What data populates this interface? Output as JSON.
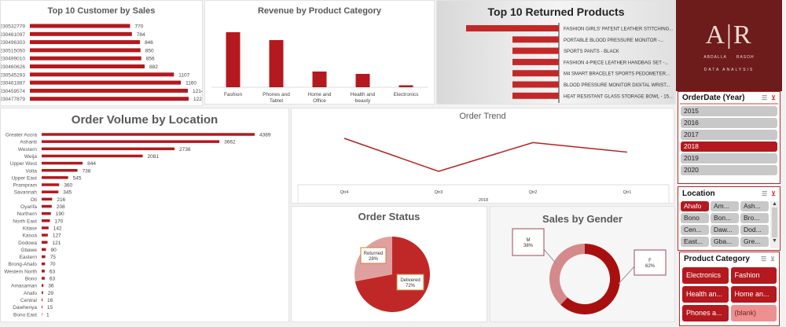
{
  "colors": {
    "accent": "#b3191e",
    "light": "#d98c8c",
    "logo_bg": "#6e1b1b"
  },
  "logo": {
    "letters": "A|R",
    "name_left": "ABDALLA",
    "name_right": "RASOH",
    "tagline": "DATA ANALYSIS"
  },
  "chart_data": [
    {
      "id": "customers",
      "type": "bar",
      "orientation": "horizontal",
      "title": "Top 10 Customer by Sales",
      "categories": [
        "230532779",
        "230461097",
        "230496303",
        "230515050",
        "230499010",
        "230460626",
        "230545293",
        "230461887",
        "230459574",
        "230477879"
      ],
      "values": [
        770,
        784,
        846,
        850,
        856,
        882,
        1107,
        1160,
        1214,
        1220
      ]
    },
    {
      "id": "revenue",
      "type": "bar",
      "title": "Revenue by Product Category",
      "categories": [
        "Fashion",
        "Phones and Tablet",
        "Home and Office",
        "Health and beauty",
        "Electronics"
      ],
      "values": [
        70,
        60,
        20,
        17,
        2.5
      ]
    },
    {
      "id": "returned",
      "type": "bar",
      "orientation": "horizontal",
      "title": "Top 10 Returned Products",
      "categories": [
        "FASHION GIRLS' PATENT LEATHER STITCHING...",
        "PORTABLE BLOOD PRESSURE MONITOR -...",
        "SPORTS PANTS - BLACK",
        "FASHION 4-PIECE LEATHER HANDBAG SET -...",
        "M4 SMART BRACELET SPORTS PEDOMETER...",
        "BLOOD PRESSURE MONITOR DIGITAL WRIST...",
        "HEAT RESISTANT GLASS STORAGE BOWL - 15..."
      ],
      "values": [
        2,
        1,
        1,
        1,
        1,
        1,
        1
      ]
    },
    {
      "id": "location",
      "type": "bar",
      "orientation": "horizontal",
      "title": "Order Volume by Location",
      "categories": [
        "Greater Accra",
        "Ashanti",
        "Western",
        "Weija",
        "Upper West",
        "Volta",
        "Upper East",
        "Prampram",
        "Savannah",
        "Oti",
        "Oyarifa",
        "Northern",
        "North East",
        "Kitase",
        "Kasoa",
        "Dodowa",
        "Gbawe",
        "Eastern",
        "Brong-Ahafo",
        "Western North",
        "Bono",
        "Amasaman",
        "Ahafo",
        "Central",
        "Dawhenya",
        "Bono East"
      ],
      "values": [
        4389,
        3662,
        2738,
        2081,
        844,
        738,
        545,
        360,
        345,
        216,
        208,
        190,
        170,
        142,
        127,
        121,
        90,
        75,
        70,
        63,
        63,
        36,
        29,
        16,
        15,
        1
      ]
    },
    {
      "id": "trend",
      "type": "line",
      "title": "Order Trend",
      "categories": [
        "Qtr4",
        "Qtr3",
        "Qtr2",
        "Qtr1"
      ],
      "xlabel": "2018",
      "values": [
        100,
        45,
        93,
        77
      ]
    },
    {
      "id": "status",
      "type": "pie",
      "title": "Order Status",
      "slices": [
        {
          "label": "Delivered",
          "value": 72,
          "text": "72%"
        },
        {
          "label": "Returned",
          "value": 28,
          "text": "28%"
        }
      ]
    },
    {
      "id": "gender",
      "type": "pie",
      "donut": true,
      "title": "Sales by Gender",
      "slices": [
        {
          "label": "F",
          "value": 62,
          "text": "62%"
        },
        {
          "label": "M",
          "value": 38,
          "text": "38%"
        }
      ]
    }
  ],
  "slicers": {
    "year": {
      "title": "OrderDate (Year)",
      "items": [
        "2015",
        "2016",
        "2017",
        "2018",
        "2019",
        "2020"
      ],
      "selected": "2018"
    },
    "location": {
      "title": "Location",
      "items": [
        "Ahafo",
        "Am...",
        "Ash...",
        "Bono",
        "Bon...",
        "Bro...",
        "Cen...",
        "Daw...",
        "Dod...",
        "East...",
        "Gba...",
        "Gre..."
      ],
      "selected": "Ahafo"
    },
    "category": {
      "title": "Product Category",
      "items": [
        "Electronics",
        "Fashion",
        "Health an...",
        "Home an...",
        "Phones a...",
        "(blank)"
      ]
    }
  }
}
